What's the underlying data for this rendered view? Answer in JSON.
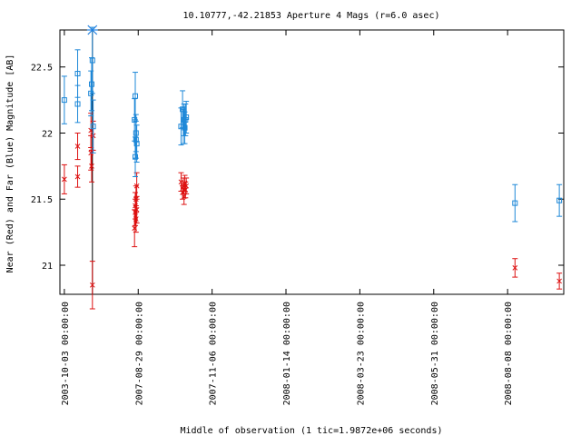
{
  "chart_data": {
    "type": "scatter",
    "title": "10.10777,-42.21853   Aperture 4 Mags (r=6.0 asec)",
    "xlabel": "Middle of observation (1 tic=1.9872e+06 seconds)",
    "ylabel": "Near (Red) and Far (Blue) Magnitude [AB]",
    "y_inverted": true,
    "ylim": [
      22.78,
      20.78
    ],
    "xlim": [
      -0.06,
      6.76
    ],
    "x_ticks": [
      {
        "pos": 0,
        "label": "2003-10-03 00:00:00"
      },
      {
        "pos": 1,
        "label": "2007-08-29 00:00:00"
      },
      {
        "pos": 2,
        "label": "2007-11-06 00:00:00"
      },
      {
        "pos": 3,
        "label": "2008-01-14 00:00:00"
      },
      {
        "pos": 4,
        "label": "2008-03-23 00:00:00"
      },
      {
        "pos": 5,
        "label": "2008-05-31 00:00:00"
      },
      {
        "pos": 6,
        "label": "2008-08-08 00:00:00"
      },
      {
        "pos": 7,
        "label": "2008-10-16 00:00:00"
      }
    ],
    "y_ticks": [
      {
        "pos": 21,
        "label": "21"
      },
      {
        "pos": 21.5,
        "label": "21.5"
      },
      {
        "pos": 22,
        "label": "22"
      },
      {
        "pos": 22.5,
        "label": "22.5"
      }
    ],
    "marker_line_x": 0.38,
    "marker_line_color": "#000000",
    "special_marker": {
      "x": 0.38,
      "y": 22.78,
      "color": "#2080e0"
    },
    "grid": false,
    "series": [
      {
        "marker": "x",
        "color": "#dd1111",
        "points": [
          {
            "x": 0.0,
            "y": 21.65,
            "err": 0.11
          },
          {
            "x": 0.18,
            "y": 21.67,
            "err": 0.08
          },
          {
            "x": 0.18,
            "y": 21.9,
            "err": 0.1
          },
          {
            "x": 0.36,
            "y": 21.85,
            "err": 0.13
          },
          {
            "x": 0.36,
            "y": 22.02,
            "err": 0.13
          },
          {
            "x": 0.37,
            "y": 21.75,
            "err": 0.12
          },
          {
            "x": 0.38,
            "y": 20.85,
            "err": 0.18
          },
          {
            "x": 0.39,
            "y": 21.98,
            "err": 0.11
          },
          {
            "x": 0.95,
            "y": 21.28,
            "err": 0.14
          },
          {
            "x": 0.96,
            "y": 21.45,
            "err": 0.1
          },
          {
            "x": 0.96,
            "y": 21.4,
            "err": 0.1
          },
          {
            "x": 0.97,
            "y": 21.35,
            "err": 0.1
          },
          {
            "x": 0.97,
            "y": 21.5,
            "err": 0.1
          },
          {
            "x": 0.98,
            "y": 21.42,
            "err": 0.1
          },
          {
            "x": 0.98,
            "y": 21.6,
            "err": 0.1
          },
          {
            "x": 1.58,
            "y": 21.63,
            "err": 0.07
          },
          {
            "x": 1.6,
            "y": 21.55,
            "err": 0.05
          },
          {
            "x": 1.61,
            "y": 21.6,
            "err": 0.06
          },
          {
            "x": 1.62,
            "y": 21.52,
            "err": 0.06
          },
          {
            "x": 1.63,
            "y": 21.62,
            "err": 0.06
          },
          {
            "x": 1.64,
            "y": 21.57,
            "err": 0.06
          },
          {
            "x": 1.65,
            "y": 21.6,
            "err": 0.06
          },
          {
            "x": 6.1,
            "y": 20.98,
            "err": 0.07
          },
          {
            "x": 6.7,
            "y": 20.88,
            "err": 0.06
          }
        ]
      },
      {
        "marker": "square",
        "color": "#1e88d8",
        "points": [
          {
            "x": 0.0,
            "y": 22.25,
            "err": 0.18
          },
          {
            "x": 0.18,
            "y": 22.45,
            "err": 0.18
          },
          {
            "x": 0.18,
            "y": 22.22,
            "err": 0.14
          },
          {
            "x": 0.36,
            "y": 22.3,
            "err": 0.17
          },
          {
            "x": 0.37,
            "y": 22.37,
            "err": 0.2
          },
          {
            "x": 0.38,
            "y": 22.55,
            "err": 0.25
          },
          {
            "x": 0.39,
            "y": 22.05,
            "err": 0.2
          },
          {
            "x": 0.95,
            "y": 22.1,
            "err": 0.16
          },
          {
            "x": 0.96,
            "y": 22.28,
            "err": 0.18
          },
          {
            "x": 0.96,
            "y": 21.82,
            "err": 0.15
          },
          {
            "x": 0.97,
            "y": 21.95,
            "err": 0.14
          },
          {
            "x": 0.97,
            "y": 22.0,
            "err": 0.14
          },
          {
            "x": 0.98,
            "y": 21.92,
            "err": 0.14
          },
          {
            "x": 1.58,
            "y": 22.05,
            "err": 0.14
          },
          {
            "x": 1.6,
            "y": 22.18,
            "err": 0.14
          },
          {
            "x": 1.61,
            "y": 22.05,
            "err": 0.13
          },
          {
            "x": 1.62,
            "y": 22.1,
            "err": 0.12
          },
          {
            "x": 1.63,
            "y": 22.04,
            "err": 0.12
          },
          {
            "x": 1.64,
            "y": 22.1,
            "err": 0.12
          },
          {
            "x": 1.65,
            "y": 22.12,
            "err": 0.12
          },
          {
            "x": 6.1,
            "y": 21.47,
            "err": 0.14
          },
          {
            "x": 6.7,
            "y": 21.49,
            "err": 0.12
          }
        ]
      }
    ]
  }
}
